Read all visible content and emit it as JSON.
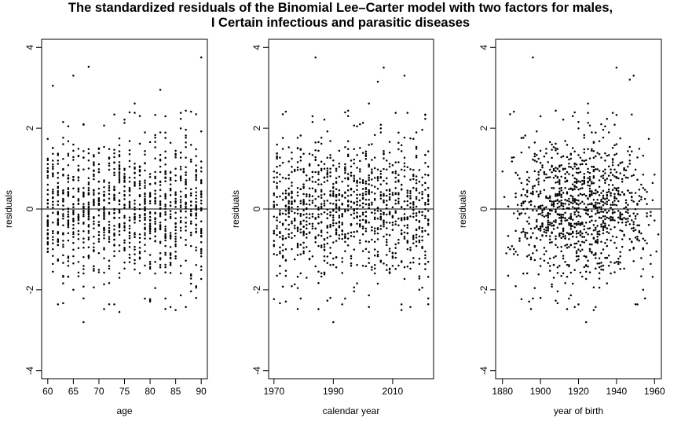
{
  "title_lines": [
    "The standardized residuals of the Binomial Lee–Carter model with two factors for males,",
    "I Certain infectious and parasitic diseases"
  ],
  "chart_data": [
    {
      "type": "scatter",
      "xlabel": "age",
      "ylabel": "residuals",
      "xlim": [
        58.8,
        91.2
      ],
      "ylim": [
        -4.2,
        4.2
      ],
      "xticks": [
        60,
        65,
        70,
        75,
        80,
        85,
        90
      ],
      "yticks": [
        -4,
        -2,
        0,
        2,
        4
      ],
      "hline": 0,
      "grid": false,
      "x_values": "integer ages 60 to 90",
      "y_range_approx": [
        -2.8,
        3.8
      ],
      "notable_points": [
        {
          "x": 90,
          "y": 3.75
        },
        {
          "x": 68,
          "y": 3.52
        },
        {
          "x": 65,
          "y": 3.3
        },
        {
          "x": 61,
          "y": 3.05
        },
        {
          "x": 82,
          "y": 2.95
        },
        {
          "x": 67,
          "y": -2.8
        },
        {
          "x": 74,
          "y": -2.55
        },
        {
          "x": 85,
          "y": -2.5
        }
      ]
    },
    {
      "type": "scatter",
      "xlabel": "calendar year",
      "ylabel": "residuals",
      "xlim": [
        1968.2,
        2023.8
      ],
      "ylim": [
        -4.2,
        4.2
      ],
      "xticks": [
        1970,
        1990,
        2010
      ],
      "yticks": [
        -4,
        -2,
        0,
        2,
        4
      ],
      "hline": 0,
      "grid": false,
      "x_values": "integer years 1970 to 2022",
      "y_range_approx": [
        -2.8,
        3.8
      ],
      "notable_points": [
        {
          "x": 1984,
          "y": 3.75
        },
        {
          "x": 2007,
          "y": 3.5
        },
        {
          "x": 2005,
          "y": 3.15
        },
        {
          "x": 2014,
          "y": 3.3
        },
        {
          "x": 1990,
          "y": -2.8
        },
        {
          "x": 2013,
          "y": -2.5
        }
      ]
    },
    {
      "type": "scatter",
      "xlabel": "year of birth",
      "ylabel": "residuals",
      "xlim": [
        1876.4,
        1963.6
      ],
      "ylim": [
        -4.2,
        4.2
      ],
      "xticks": [
        1880,
        1900,
        1920,
        1940,
        1960
      ],
      "yticks": [
        -4,
        -2,
        0,
        2,
        4
      ],
      "hline": 0,
      "grid": false,
      "x_values": "cohort = calendar year - age, 1880 to 1962",
      "y_range_approx": [
        -2.8,
        3.8
      ],
      "notable_points": [
        {
          "x": 1896,
          "y": 3.75
        },
        {
          "x": 1940,
          "y": 3.5
        },
        {
          "x": 1947,
          "y": 3.2
        },
        {
          "x": 1949,
          "y": 3.3
        },
        {
          "x": 1924,
          "y": -2.8
        },
        {
          "x": 1928,
          "y": -2.5
        }
      ]
    }
  ]
}
